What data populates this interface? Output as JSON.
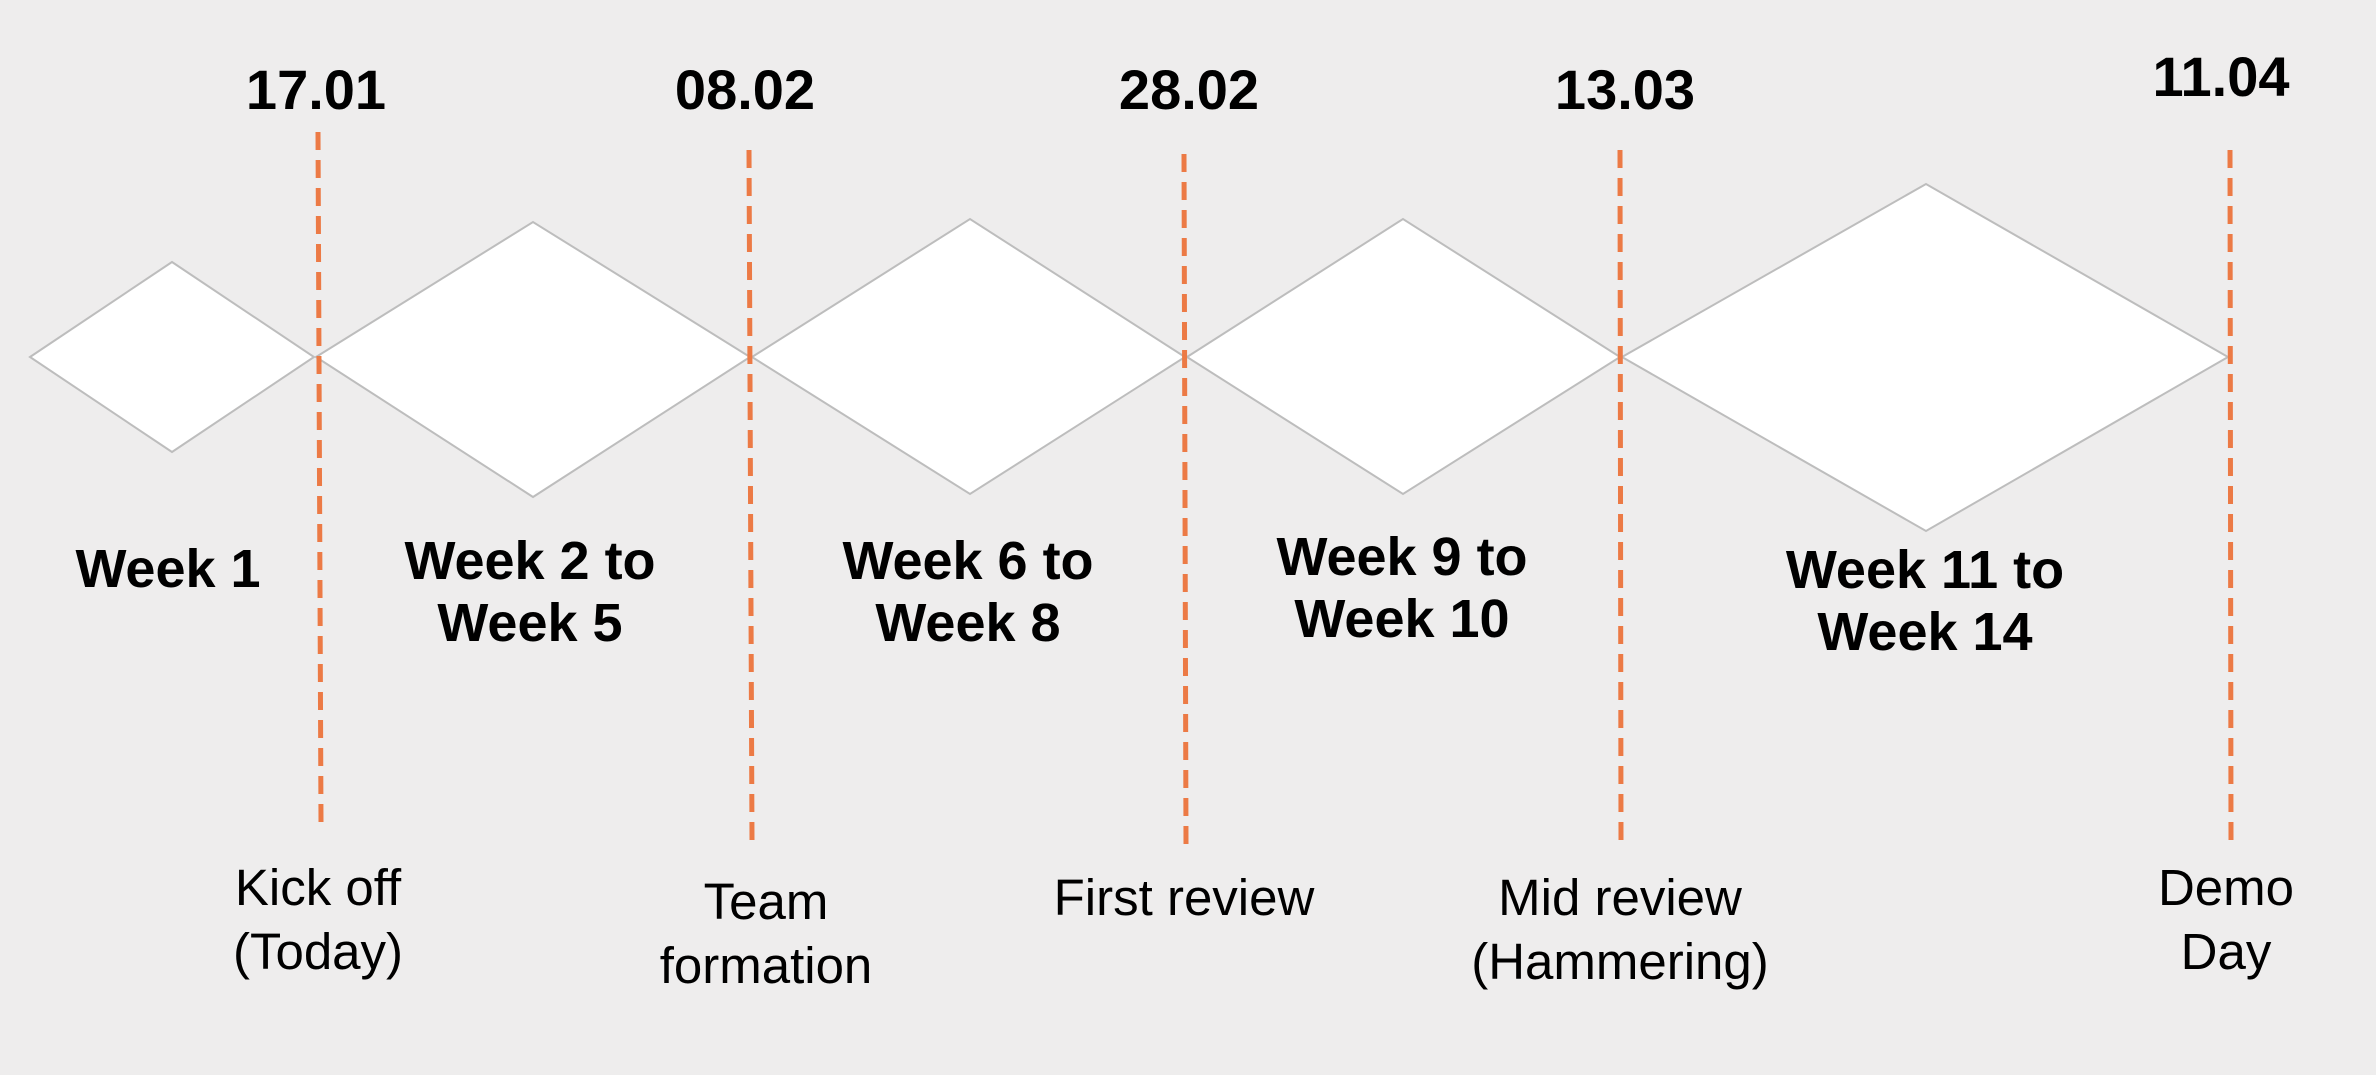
{
  "colors": {
    "background": "#eeeded",
    "diamond_fill": "#ffffff",
    "diamond_stroke": "#bdbdbd",
    "marker_line": "#ec7a45",
    "text": "#000000"
  },
  "dates": [
    "17.01",
    "08.02",
    "28.02",
    "13.03",
    "11.04"
  ],
  "phases": [
    {
      "lines": [
        "Week 1"
      ]
    },
    {
      "lines": [
        "Week 2 to",
        "Week 5"
      ]
    },
    {
      "lines": [
        "Week 6 to",
        "Week 8"
      ]
    },
    {
      "lines": [
        "Week 9 to",
        "Week 10"
      ]
    },
    {
      "lines": [
        "Week 11 to",
        "Week 14"
      ]
    }
  ],
  "milestones": [
    {
      "lines": [
        "Kick off",
        "(Today)"
      ]
    },
    {
      "lines": [
        "Team",
        "formation"
      ]
    },
    {
      "lines": [
        "First review"
      ]
    },
    {
      "lines": [
        "Mid review",
        "(Hammering)"
      ]
    },
    {
      "lines": [
        "Demo",
        "Day"
      ]
    }
  ]
}
